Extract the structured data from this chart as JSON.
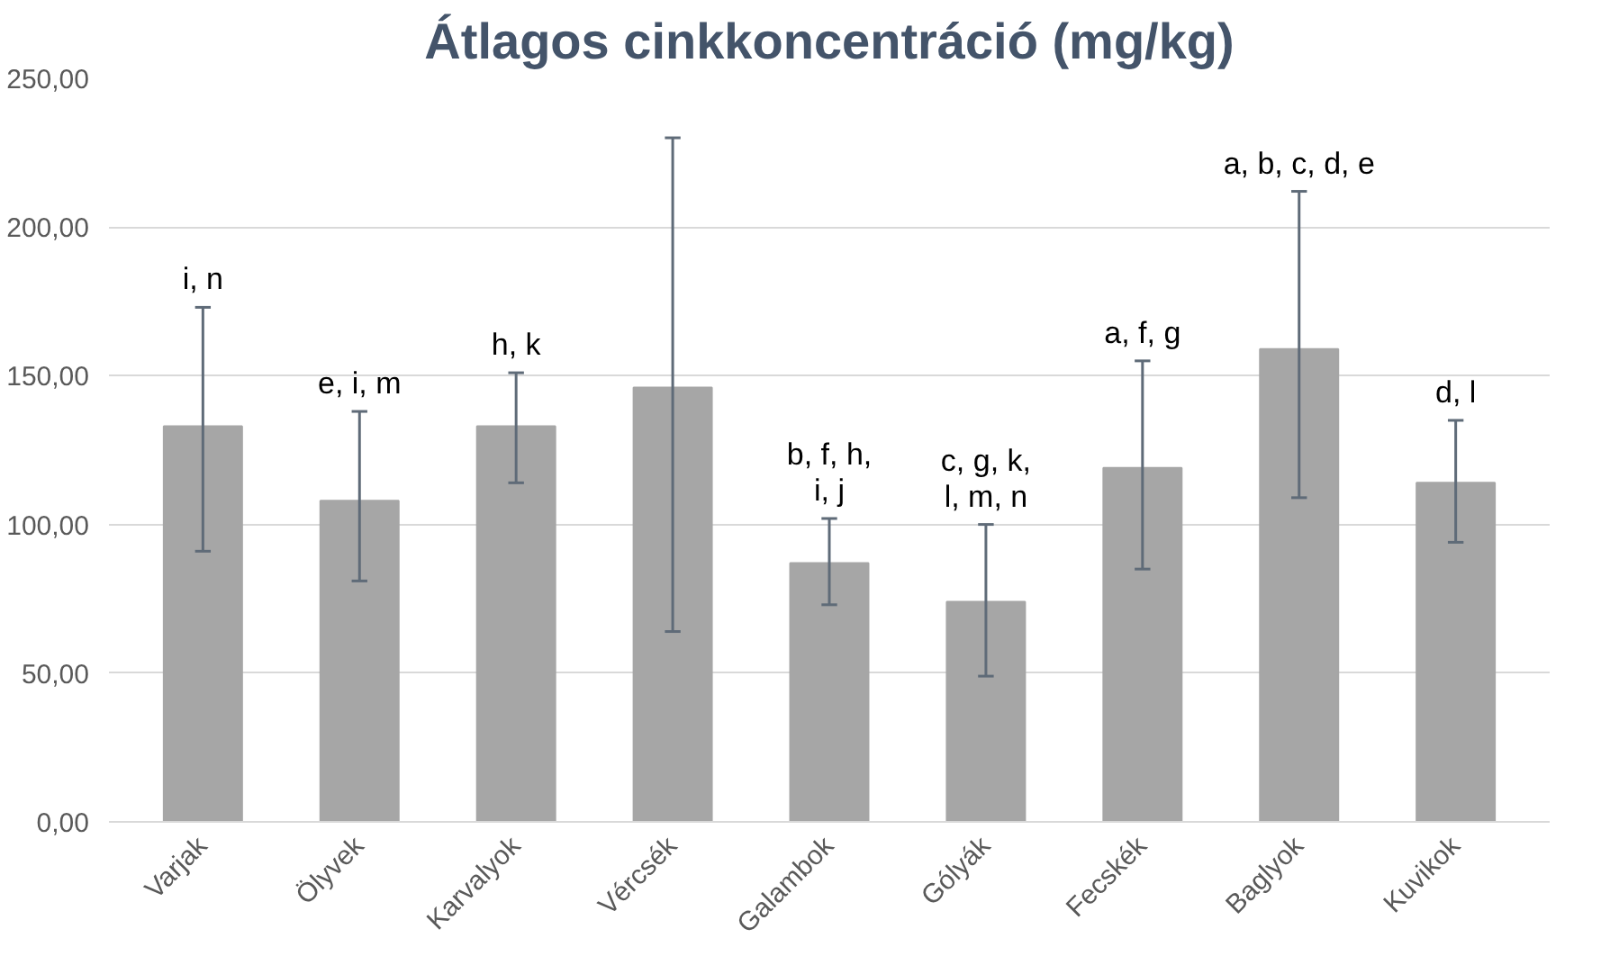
{
  "chart_data": {
    "type": "bar",
    "title": "Átlagos cinkkoncentráció (mg/kg)",
    "categories": [
      "Varjak",
      "Ölyvek",
      "Karvalyok",
      "Vércsék",
      "Galambok",
      "Gólyák",
      "Fecskék",
      "Baglyok",
      "Kuvikok"
    ],
    "values": [
      133,
      108,
      133,
      146,
      87,
      74,
      119,
      159,
      114
    ],
    "errors": [
      [
        91,
        173
      ],
      [
        81,
        138
      ],
      [
        114,
        151
      ],
      [
        64,
        230
      ],
      [
        73,
        102
      ],
      [
        49,
        100
      ],
      [
        85,
        155
      ],
      [
        109,
        212
      ],
      [
        94,
        135
      ]
    ],
    "color": "#a6a6a6",
    "ylim": [
      0,
      250
    ],
    "yticks": [
      {
        "value": 0,
        "label": "0,00"
      },
      {
        "value": 50,
        "label": "50,00"
      },
      {
        "value": 100,
        "label": "100,00"
      },
      {
        "value": 150,
        "label": "150,00"
      },
      {
        "value": 200,
        "label": "200,00"
      },
      {
        "value": 250,
        "label": "250,00"
      }
    ],
    "grid": "y",
    "annotations": [
      {
        "text": "i, n",
        "x": "Varjak",
        "y": 173
      },
      {
        "text": "e, i, m",
        "x": "Ölyvek",
        "y": 138
      },
      {
        "text": "h, k",
        "x": "Karvalyok",
        "y": 151
      },
      {
        "text": "b, f, h,\ni, j",
        "x": "Galambok",
        "y": 102
      },
      {
        "text": "c, g, k,\nl, m, n",
        "x": "Gólyák",
        "y": 100
      },
      {
        "text": "a, f, g",
        "x": "Fecskék",
        "y": 155
      },
      {
        "text": "a, b, c, d, e",
        "x": "Baglyok",
        "y": 212
      },
      {
        "text": "d, l",
        "x": "Kuvikok",
        "y": 135
      }
    ]
  }
}
